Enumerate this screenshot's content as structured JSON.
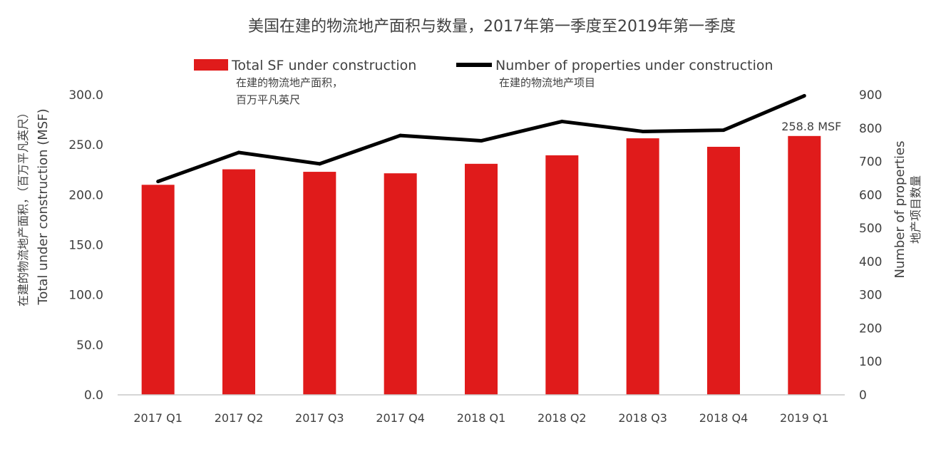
{
  "chart_data": {
    "type": "bar+line",
    "title": "美国在建的物流地产面积与数量，2017年第一季度至2019年第一季度",
    "categories": [
      "2017 Q1",
      "2017 Q2",
      "2017 Q3",
      "2017 Q4",
      "2018 Q1",
      "2018 Q2",
      "2018 Q3",
      "2018 Q4",
      "2019 Q1"
    ],
    "series": [
      {
        "name": "Total SF under construction",
        "name_zh_line1": "在建的物流地产面积，",
        "name_zh_line2": "百万平凡英尺",
        "type": "bar",
        "axis": "left",
        "color": "#e01b1b",
        "values": [
          210.0,
          225.5,
          223.0,
          221.5,
          231.0,
          239.5,
          256.5,
          248.0,
          258.8
        ]
      },
      {
        "name": "Number of properties under construction",
        "name_zh": "在建的物流地产项目",
        "type": "line",
        "axis": "right",
        "color": "#000000",
        "values": [
          640,
          727,
          693,
          778,
          762,
          820,
          790,
          794,
          897
        ]
      }
    ],
    "annotation": "258.8 MSF",
    "y_left": {
      "label": "Total under construction (MSF)",
      "label_zh": "在建的物流地产面积，（百万平凡英尺）",
      "ylim": [
        0,
        300
      ],
      "ticks": [
        "0.0",
        "50.0",
        "100.0",
        "150.0",
        "200.0",
        "250.0",
        "300.0"
      ]
    },
    "y_right": {
      "label": "Number of properties",
      "label_zh": "地产项目数量",
      "ylim": [
        0,
        900
      ],
      "ticks": [
        "0",
        "100",
        "200",
        "300",
        "400",
        "500",
        "600",
        "700",
        "800",
        "900"
      ]
    },
    "grid": false,
    "legend_position": "top"
  }
}
